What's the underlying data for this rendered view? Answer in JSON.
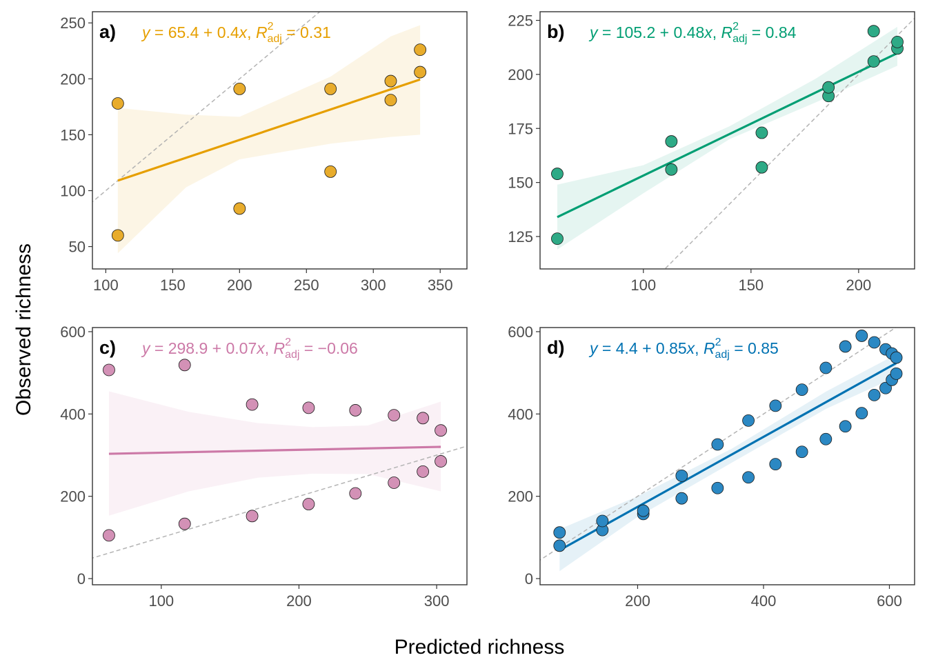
{
  "figure": {
    "xlabel": "Predicted richness",
    "ylabel": "Observed richness"
  },
  "chart_data": [
    {
      "type": "scatter",
      "panel": "a)",
      "color": "#E69F00",
      "fill": "#E8AC2C",
      "eq": {
        "lhs": "y",
        "intercept": "65.4",
        "slope": "0.4",
        "r2_value": "0.31"
      },
      "xlim": [
        90,
        370
      ],
      "ylim": [
        30,
        260
      ],
      "xticks": [
        100,
        150,
        200,
        250,
        300,
        350
      ],
      "yticks": [
        50,
        100,
        150,
        200,
        250
      ],
      "points": [
        [
          109,
          60
        ],
        [
          109,
          178
        ],
        [
          200,
          84
        ],
        [
          200,
          191
        ],
        [
          268,
          117
        ],
        [
          268,
          191
        ],
        [
          313,
          181
        ],
        [
          313,
          198
        ],
        [
          335,
          206
        ],
        [
          335,
          226
        ]
      ],
      "fit": {
        "x": [
          109,
          335
        ],
        "intercept": 65.4,
        "slope": 0.4
      },
      "band": {
        "x": [
          109,
          160,
          200,
          268,
          313,
          335
        ],
        "lower": [
          44,
          103,
          128,
          142,
          148,
          150
        ],
        "upper": [
          174,
          168,
          166,
          202,
          238,
          248
        ]
      },
      "identity_line": true
    },
    {
      "type": "scatter",
      "panel": "b)",
      "color": "#009E73",
      "fill": "#2EAA86",
      "eq": {
        "lhs": "y",
        "intercept": "105.2",
        "slope": "0.48",
        "r2_value": "0.84"
      },
      "xlim": [
        52,
        226
      ],
      "ylim": [
        110,
        229
      ],
      "xticks": [
        100,
        150,
        200
      ],
      "yticks": [
        125,
        150,
        175,
        200,
        225
      ],
      "points": [
        [
          60,
          124
        ],
        [
          60,
          154
        ],
        [
          113,
          156
        ],
        [
          113,
          169
        ],
        [
          155,
          157
        ],
        [
          155,
          173
        ],
        [
          186,
          190
        ],
        [
          186,
          194
        ],
        [
          207,
          206
        ],
        [
          207,
          220
        ],
        [
          218,
          212
        ],
        [
          218,
          215
        ]
      ],
      "fit": {
        "x": [
          60,
          218
        ],
        "intercept": 105.2,
        "slope": 0.48
      },
      "band": {
        "x": [
          60,
          100,
          140,
          180,
          218
        ],
        "lower": [
          119,
          145,
          170,
          187,
          204
        ],
        "upper": [
          149,
          158,
          176,
          198,
          222
        ]
      },
      "identity_line": true
    },
    {
      "type": "scatter",
      "panel": "c)",
      "color": "#CC79A7",
      "fill": "#D391B6",
      "eq": {
        "lhs": "y",
        "intercept": "298.9",
        "slope": "0.07",
        "r2_value": "−0.06"
      },
      "xlim": [
        50,
        322
      ],
      "ylim": [
        -15,
        610
      ],
      "xticks": [
        100,
        200,
        300
      ],
      "yticks": [
        0,
        200,
        400,
        600
      ],
      "points": [
        [
          62,
          105
        ],
        [
          62,
          507
        ],
        [
          117,
          133
        ],
        [
          117,
          519
        ],
        [
          166,
          152
        ],
        [
          166,
          423
        ],
        [
          207,
          181
        ],
        [
          207,
          415
        ],
        [
          241,
          207
        ],
        [
          241,
          409
        ],
        [
          269,
          233
        ],
        [
          269,
          397
        ],
        [
          290,
          260
        ],
        [
          290,
          390
        ],
        [
          303,
          285
        ],
        [
          303,
          360
        ]
      ],
      "fit": {
        "x": [
          62,
          303
        ],
        "intercept": 298.9,
        "slope": 0.07
      },
      "band": {
        "x": [
          62,
          120,
          170,
          210,
          250,
          303
        ],
        "lower": [
          153,
          212,
          245,
          255,
          254,
          212
        ],
        "upper": [
          455,
          405,
          378,
          368,
          372,
          430
        ]
      },
      "identity_line": true
    },
    {
      "type": "scatter",
      "panel": "d)",
      "color": "#0072B2",
      "fill": "#2B88C3",
      "eq": {
        "lhs": "y",
        "intercept": "4.4",
        "slope": "0.85",
        "r2_value": "0.85"
      },
      "xlim": [
        45,
        640
      ],
      "ylim": [
        -15,
        610
      ],
      "xticks": [
        200,
        400,
        600
      ],
      "yticks": [
        0,
        200,
        400,
        600
      ],
      "points": [
        [
          76,
          80
        ],
        [
          76,
          112
        ],
        [
          144,
          118
        ],
        [
          144,
          140
        ],
        [
          209,
          157
        ],
        [
          209,
          165
        ],
        [
          270,
          195
        ],
        [
          270,
          250
        ],
        [
          327,
          220
        ],
        [
          327,
          326
        ],
        [
          376,
          246
        ],
        [
          376,
          384
        ],
        [
          419,
          278
        ],
        [
          419,
          420
        ],
        [
          461,
          308
        ],
        [
          461,
          459
        ],
        [
          499,
          339
        ],
        [
          499,
          512
        ],
        [
          530,
          370
        ],
        [
          530,
          564
        ],
        [
          556,
          402
        ],
        [
          556,
          590
        ],
        [
          576,
          446
        ],
        [
          576,
          574
        ],
        [
          594,
          463
        ],
        [
          594,
          557
        ],
        [
          604,
          483
        ],
        [
          604,
          547
        ],
        [
          611,
          498
        ],
        [
          611,
          537
        ]
      ],
      "fit": {
        "x": [
          76,
          611
        ],
        "intercept": 4.4,
        "slope": 0.85
      },
      "band": {
        "x": [
          76,
          200,
          350,
          500,
          611
        ],
        "lower": [
          18,
          150,
          282,
          413,
          490
        ],
        "upper": [
          120,
          200,
          316,
          455,
          545
        ]
      },
      "identity_line": true
    }
  ]
}
